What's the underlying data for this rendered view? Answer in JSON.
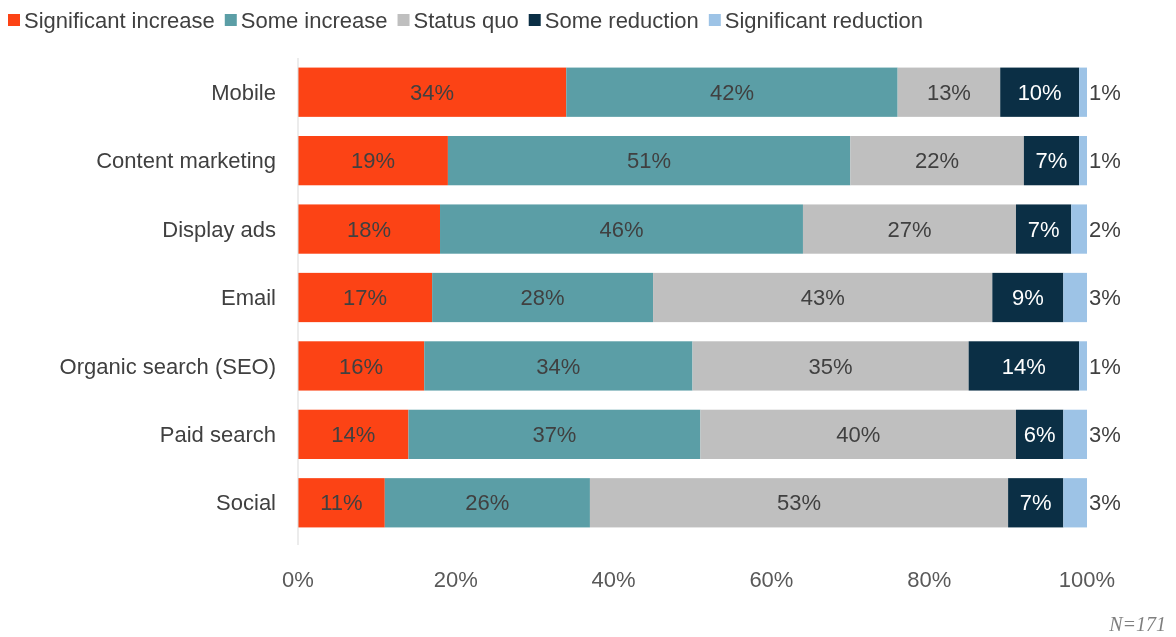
{
  "chart_data": {
    "type": "bar",
    "orientation": "horizontal",
    "stacked": true,
    "legend": "top",
    "grid": false,
    "categories": [
      "Mobile",
      "Content marketing",
      "Display ads",
      "Email",
      "Organic search (SEO)",
      "Paid search",
      "Social"
    ],
    "series": [
      {
        "name": "Significant increase",
        "color": "#fc4315",
        "values": [
          34,
          19,
          18,
          17,
          16,
          14,
          11
        ],
        "value_labels": [
          "34%",
          "19%",
          "18%",
          "17%",
          "16%",
          "14%",
          "11%"
        ]
      },
      {
        "name": "Some increase",
        "color": "#5b9ea6",
        "values": [
          42,
          51,
          46,
          28,
          34,
          37,
          26
        ],
        "value_labels": [
          "42%",
          "51%",
          "46%",
          "28%",
          "34%",
          "37%",
          "26%"
        ]
      },
      {
        "name": "Status quo",
        "color": "#bfbfbf",
        "values": [
          13,
          22,
          27,
          43,
          35,
          40,
          53
        ],
        "value_labels": [
          "13%",
          "22%",
          "27%",
          "43%",
          "35%",
          "40%",
          "53%"
        ]
      },
      {
        "name": "Some reduction",
        "color": "#0b2f45",
        "values": [
          10,
          7,
          7,
          9,
          14,
          6,
          7
        ],
        "value_labels": [
          "10%",
          "7%",
          "7%",
          "9%",
          "14%",
          "6%",
          "7%"
        ]
      },
      {
        "name": "Significant reduction",
        "color": "#9dc3e6",
        "values": [
          1,
          1,
          2,
          3,
          1,
          3,
          3
        ],
        "value_labels": [
          "1%",
          "1%",
          "2%",
          "3%",
          "1%",
          "3%",
          "3%"
        ]
      }
    ],
    "xlim": [
      0,
      100
    ],
    "xticks": [
      {
        "value": 0,
        "label": "0%"
      },
      {
        "value": 20,
        "label": "20%"
      },
      {
        "value": 40,
        "label": "40%"
      },
      {
        "value": 60,
        "label": "60%"
      },
      {
        "value": 80,
        "label": "80%"
      },
      {
        "value": 100,
        "label": "100%"
      }
    ],
    "annotations": [
      "N=171"
    ]
  }
}
